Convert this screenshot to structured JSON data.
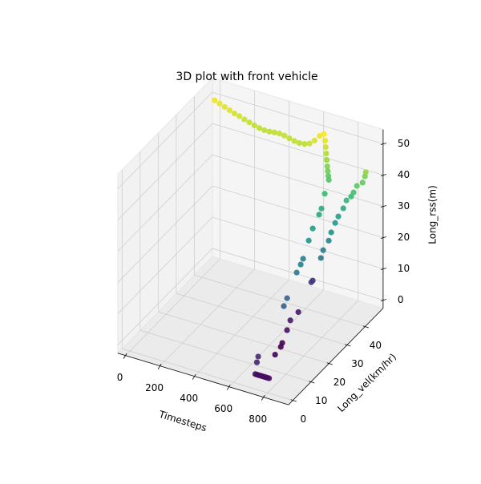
{
  "chart_data": {
    "type": "scatter3d",
    "title": "3D plot with front vehicle",
    "xlabel": "Timesteps",
    "ylabel": "Long_vel(km/hr)",
    "zlabel": "Long_rss(m)",
    "cmap": "viridis",
    "grid": true,
    "xlim": [
      -45,
      945
    ],
    "ylim": [
      -2.4,
      50
    ],
    "zlim": [
      -2.6,
      54.6
    ],
    "xticks": [
      0,
      200,
      400,
      600,
      800
    ],
    "yticks": [
      0,
      10,
      20,
      30,
      40
    ],
    "zticks": [
      0,
      10,
      20,
      30,
      40,
      50
    ],
    "x": [
      10,
      40,
      70,
      100,
      130,
      160,
      190,
      220,
      250,
      280,
      310,
      340,
      370,
      400,
      430,
      460,
      490,
      520,
      550,
      580,
      610,
      640,
      665,
      672,
      675,
      678,
      681,
      684,
      687,
      690,
      693,
      700,
      705,
      710,
      715,
      720,
      725,
      730,
      735,
      740,
      745,
      650,
      655,
      665,
      675,
      680,
      690,
      695,
      705,
      720,
      722,
      725,
      735,
      745,
      755,
      765,
      775,
      785,
      795,
      805,
      760,
      765,
      770,
      775,
      780,
      785,
      800,
      815,
      830,
      845,
      860,
      875,
      890,
      900
    ],
    "y": [
      46,
      45.9,
      45.8,
      45.7,
      45.5,
      45.4,
      45.3,
      45.2,
      45.1,
      45,
      44.9,
      44.8,
      44.7,
      44.6,
      44.5,
      44.4,
      44.3,
      44.2,
      44.2,
      44.1,
      44,
      44,
      44,
      44,
      44,
      44,
      44,
      44,
      44,
      44,
      44,
      41.1,
      38.8,
      37,
      33,
      30.3,
      26.7,
      24.9,
      22.2,
      16.4,
      14.1,
      39.2,
      37.9,
      29.8,
      24.4,
      22.1,
      18.5,
      17.2,
      13.1,
      2.3,
      1.4,
      0.2,
      0.2,
      0.2,
      0.2,
      0.2,
      0.2,
      0.2,
      0.2,
      0.2,
      33.2,
      34,
      36.6,
      37.5,
      39.2,
      40.5,
      41.8,
      42.1,
      43.3,
      43.2,
      43.6,
      45.3,
      45.2,
      44.7
    ],
    "z": [
      50.7,
      50.2,
      49.7,
      49.2,
      48.8,
      48.5,
      48,
      47.6,
      47.2,
      46.9,
      46.8,
      46.9,
      47.2,
      47.4,
      47.3,
      47,
      46.7,
      46.6,
      46.8,
      47.5,
      49,
      51,
      52,
      50,
      48,
      46,
      44,
      42,
      40.5,
      39,
      37.8,
      35.2,
      31.9,
      31.1,
      29.1,
      26.9,
      23.3,
      22.6,
      21.7,
      17,
      15.9,
      7.7,
      8,
      3.4,
      4.1,
      2.4,
      0.6,
      0.2,
      0.3,
      6.3,
      5,
      2,
      2,
      2,
      2,
      2,
      2,
      2,
      2,
      2,
      20.3,
      22.4,
      24,
      26.2,
      28.3,
      29.7,
      31.8,
      34.4,
      35.2,
      36.8,
      38.9,
      39.2,
      41.5,
      43.3
    ]
  }
}
